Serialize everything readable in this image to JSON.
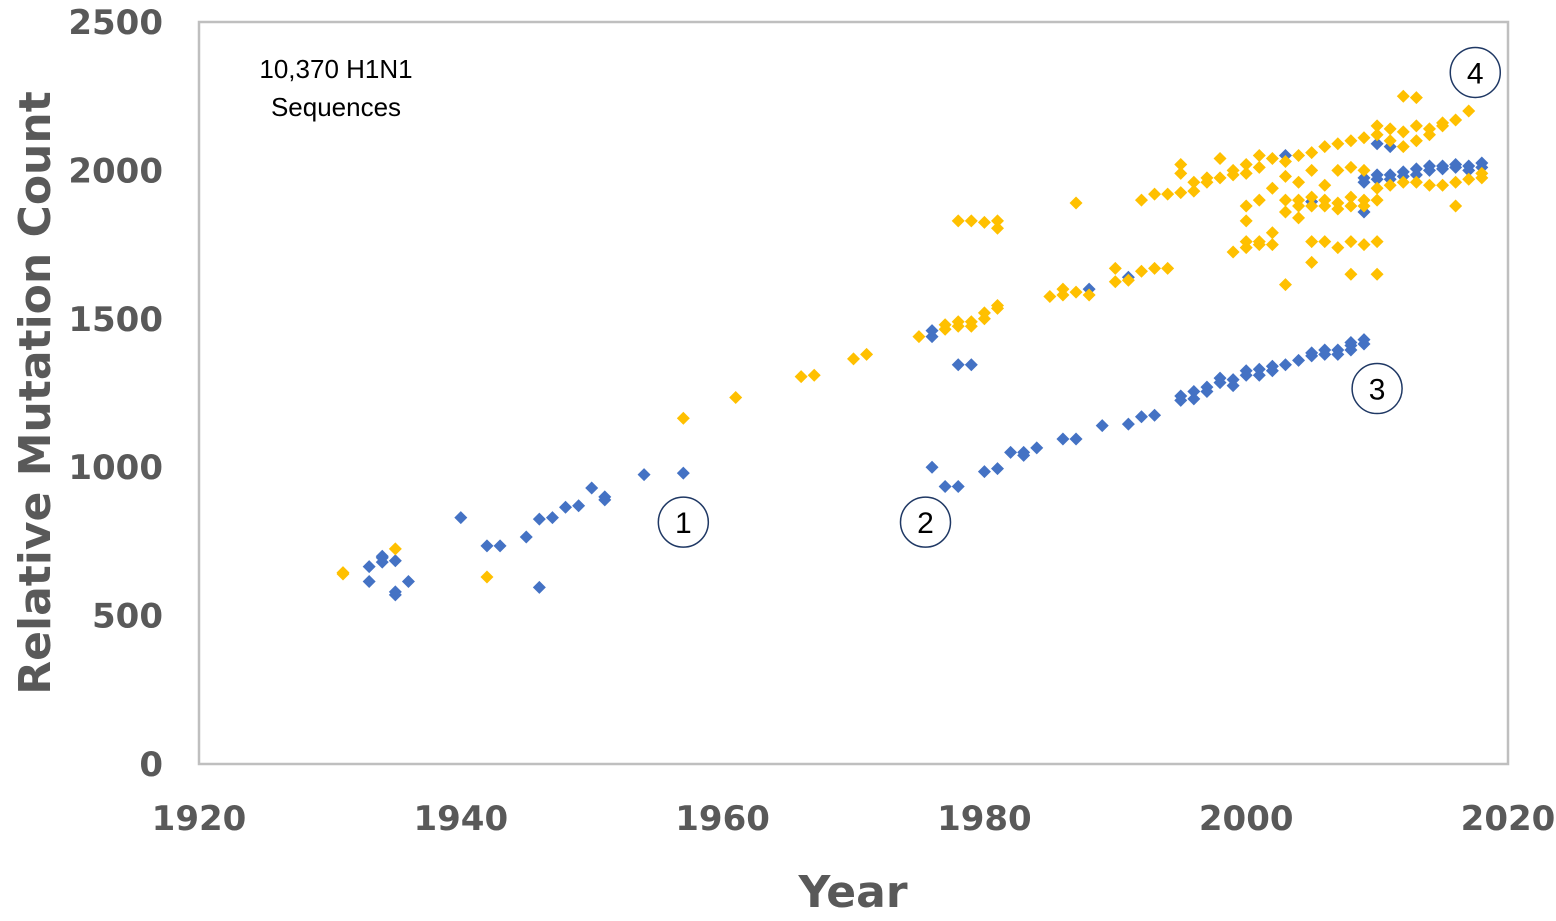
{
  "chart_data": {
    "type": "scatter",
    "title": "",
    "xlabel": "Year",
    "ylabel": "Relative Mutation Count",
    "xlim": [
      1920,
      2020
    ],
    "ylim": [
      0,
      2500
    ],
    "x_ticks": [
      1920,
      1940,
      1960,
      1980,
      2000,
      2020
    ],
    "y_ticks": [
      0,
      500,
      1000,
      1500,
      2000,
      2500
    ],
    "x_tick_labels": [
      "1920",
      "1940",
      "1960",
      "1980",
      "2000",
      "2020"
    ],
    "y_tick_labels": [
      "0",
      "500",
      "1000",
      "1500",
      "2000",
      "2500"
    ],
    "grid": false,
    "legend": "none",
    "colors": {
      "blue": "#4472C4",
      "yellow": "#FFC000",
      "frame": "#BFBFBF",
      "axis_text": "#595959"
    },
    "annotation": [
      "10,370 H1N1",
      "Sequences"
    ],
    "circled_labels": [
      {
        "text": "1",
        "x": 1957,
        "y": 815
      },
      {
        "text": "2",
        "x": 1975.5,
        "y": 815
      },
      {
        "text": "3",
        "x": 2010,
        "y": 1265
      },
      {
        "text": "4",
        "x": 2017.5,
        "y": 2330
      }
    ],
    "series": [
      {
        "color": "blue",
        "points": [
          [
            1933,
            665
          ],
          [
            1933,
            615
          ],
          [
            1934,
            680
          ],
          [
            1934,
            695
          ],
          [
            1934,
            700
          ],
          [
            1935,
            685
          ],
          [
            1935,
            580
          ],
          [
            1935,
            570
          ],
          [
            1936,
            615
          ],
          [
            1940,
            830
          ],
          [
            1942,
            735
          ],
          [
            1943,
            735
          ],
          [
            1945,
            765
          ],
          [
            1946,
            825
          ],
          [
            1946,
            595
          ],
          [
            1947,
            830
          ],
          [
            1948,
            865
          ],
          [
            1949,
            870
          ],
          [
            1950,
            930
          ],
          [
            1951,
            900
          ],
          [
            1951,
            890
          ],
          [
            1954,
            975
          ],
          [
            1957,
            980
          ],
          [
            1976,
            1440
          ],
          [
            1976,
            1460
          ],
          [
            1976,
            1000
          ],
          [
            1977,
            935
          ],
          [
            1978,
            935
          ],
          [
            1978,
            1345
          ],
          [
            1979,
            1345
          ],
          [
            1980,
            985
          ],
          [
            1981,
            995
          ],
          [
            1982,
            1050
          ],
          [
            1983,
            1050
          ],
          [
            1983,
            1040
          ],
          [
            1984,
            1065
          ],
          [
            1986,
            1095
          ],
          [
            1987,
            1095
          ],
          [
            1988,
            1600
          ],
          [
            1989,
            1140
          ],
          [
            1991,
            1640
          ],
          [
            1991,
            1145
          ],
          [
            1992,
            1170
          ],
          [
            1993,
            1175
          ],
          [
            1995,
            1240
          ],
          [
            1995,
            1225
          ],
          [
            1996,
            1230
          ],
          [
            1996,
            1255
          ],
          [
            1997,
            1270
          ],
          [
            1997,
            1255
          ],
          [
            1998,
            1285
          ],
          [
            1998,
            1300
          ],
          [
            1999,
            1295
          ],
          [
            1999,
            1275
          ],
          [
            2000,
            1310
          ],
          [
            2000,
            1325
          ],
          [
            2001,
            1330
          ],
          [
            2001,
            1310
          ],
          [
            2002,
            1340
          ],
          [
            2002,
            1325
          ],
          [
            2003,
            1345
          ],
          [
            2003,
            2050
          ],
          [
            2004,
            1360
          ],
          [
            2005,
            1895
          ],
          [
            2005,
            1375
          ],
          [
            2005,
            1385
          ],
          [
            2006,
            1380
          ],
          [
            2006,
            1395
          ],
          [
            2007,
            1395
          ],
          [
            2007,
            1380
          ],
          [
            2008,
            1410
          ],
          [
            2008,
            1395
          ],
          [
            2008,
            1420
          ],
          [
            2009,
            1415
          ],
          [
            2009,
            1430
          ],
          [
            2009,
            1860
          ],
          [
            2009,
            1960
          ],
          [
            2009,
            1975
          ],
          [
            2010,
            1970
          ],
          [
            2010,
            2090
          ],
          [
            2010,
            1985
          ],
          [
            2011,
            1985
          ],
          [
            2011,
            1970
          ],
          [
            2011,
            2080
          ],
          [
            2012,
            1995
          ],
          [
            2012,
            1980
          ],
          [
            2013,
            2005
          ],
          [
            2013,
            1985
          ],
          [
            2014,
            2000
          ],
          [
            2014,
            2015
          ],
          [
            2015,
            2005
          ],
          [
            2015,
            2015
          ],
          [
            2016,
            2010
          ],
          [
            2016,
            2020
          ],
          [
            2017,
            2015
          ],
          [
            2017,
            2000
          ],
          [
            2018,
            2010
          ],
          [
            2018,
            2025
          ]
        ]
      },
      {
        "color": "yellow",
        "points": [
          [
            1931,
            645
          ],
          [
            1931,
            640
          ],
          [
            1935,
            725
          ],
          [
            1942,
            630
          ],
          [
            1957,
            1165
          ],
          [
            1961,
            1235
          ],
          [
            1966,
            1305
          ],
          [
            1967,
            1310
          ],
          [
            1970,
            1365
          ],
          [
            1971,
            1380
          ],
          [
            1975,
            1440
          ],
          [
            1977,
            1465
          ],
          [
            1977,
            1480
          ],
          [
            1978,
            1475
          ],
          [
            1978,
            1490
          ],
          [
            1979,
            1490
          ],
          [
            1979,
            1475
          ],
          [
            1980,
            1500
          ],
          [
            1980,
            1520
          ],
          [
            1981,
            1535
          ],
          [
            1981,
            1545
          ],
          [
            1978,
            1830
          ],
          [
            1979,
            1830
          ],
          [
            1980,
            1825
          ],
          [
            1981,
            1830
          ],
          [
            1981,
            1805
          ],
          [
            1985,
            1575
          ],
          [
            1986,
            1580
          ],
          [
            1986,
            1600
          ],
          [
            1987,
            1590
          ],
          [
            1987,
            1890
          ],
          [
            1988,
            1580
          ],
          [
            1990,
            1670
          ],
          [
            1990,
            1625
          ],
          [
            1991,
            1630
          ],
          [
            1992,
            1660
          ],
          [
            1993,
            1670
          ],
          [
            1994,
            1670
          ],
          [
            1992,
            1900
          ],
          [
            1993,
            1920
          ],
          [
            1994,
            1920
          ],
          [
            1995,
            1925
          ],
          [
            1995,
            1990
          ],
          [
            1995,
            2020
          ],
          [
            1996,
            1930
          ],
          [
            1996,
            1960
          ],
          [
            1997,
            1960
          ],
          [
            1997,
            1975
          ],
          [
            1998,
            1975
          ],
          [
            1998,
            2040
          ],
          [
            1999,
            1985
          ],
          [
            1999,
            1725
          ],
          [
            1999,
            2000
          ],
          [
            2000,
            1740
          ],
          [
            2000,
            1760
          ],
          [
            2000,
            1830
          ],
          [
            2000,
            1990
          ],
          [
            2000,
            2020
          ],
          [
            2000,
            1880
          ],
          [
            2001,
            1750
          ],
          [
            2001,
            1760
          ],
          [
            2001,
            1900
          ],
          [
            2001,
            2010
          ],
          [
            2001,
            2050
          ],
          [
            2002,
            1750
          ],
          [
            2002,
            1790
          ],
          [
            2002,
            1940
          ],
          [
            2002,
            2040
          ],
          [
            2003,
            1615
          ],
          [
            2003,
            1860
          ],
          [
            2003,
            1900
          ],
          [
            2003,
            1980
          ],
          [
            2003,
            2030
          ],
          [
            2004,
            1840
          ],
          [
            2004,
            1880
          ],
          [
            2004,
            1900
          ],
          [
            2004,
            1960
          ],
          [
            2004,
            2050
          ],
          [
            2005,
            1690
          ],
          [
            2005,
            1760
          ],
          [
            2005,
            1880
          ],
          [
            2005,
            1910
          ],
          [
            2005,
            2000
          ],
          [
            2005,
            2060
          ],
          [
            2006,
            1760
          ],
          [
            2006,
            1880
          ],
          [
            2006,
            1900
          ],
          [
            2006,
            1950
          ],
          [
            2006,
            2080
          ],
          [
            2007,
            1740
          ],
          [
            2007,
            1870
          ],
          [
            2007,
            1890
          ],
          [
            2007,
            2000
          ],
          [
            2007,
            2090
          ],
          [
            2008,
            1650
          ],
          [
            2008,
            1760
          ],
          [
            2008,
            1880
          ],
          [
            2008,
            1910
          ],
          [
            2008,
            2010
          ],
          [
            2008,
            2100
          ],
          [
            2009,
            1750
          ],
          [
            2009,
            1880
          ],
          [
            2009,
            1900
          ],
          [
            2009,
            2000
          ],
          [
            2009,
            2110
          ],
          [
            2010,
            1650
          ],
          [
            2010,
            1760
          ],
          [
            2010,
            1900
          ],
          [
            2010,
            1940
          ],
          [
            2010,
            2120
          ],
          [
            2010,
            2150
          ],
          [
            2011,
            1950
          ],
          [
            2011,
            2100
          ],
          [
            2011,
            2140
          ],
          [
            2012,
            1960
          ],
          [
            2012,
            2080
          ],
          [
            2012,
            2130
          ],
          [
            2012,
            2250
          ],
          [
            2013,
            1960
          ],
          [
            2013,
            2100
          ],
          [
            2013,
            2150
          ],
          [
            2013,
            2245
          ],
          [
            2014,
            1950
          ],
          [
            2014,
            2120
          ],
          [
            2014,
            2140
          ],
          [
            2015,
            1950
          ],
          [
            2015,
            2150
          ],
          [
            2015,
            2160
          ],
          [
            2016,
            1880
          ],
          [
            2016,
            1960
          ],
          [
            2016,
            2170
          ],
          [
            2017,
            1970
          ],
          [
            2017,
            2200
          ],
          [
            2018,
            1975
          ],
          [
            2018,
            1990
          ]
        ]
      }
    ]
  }
}
